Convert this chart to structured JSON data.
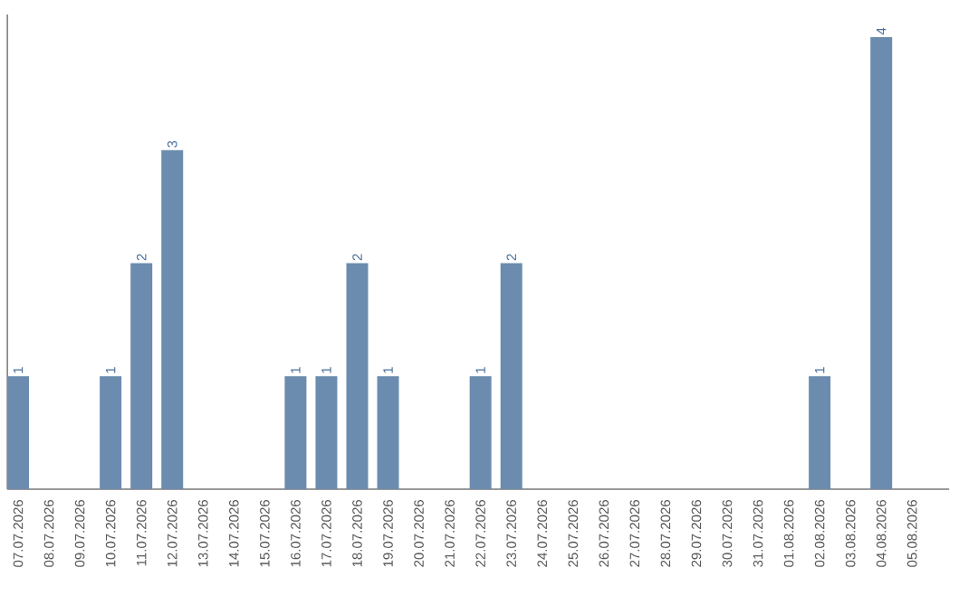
{
  "chart_data": {
    "type": "bar",
    "categories": [
      "07.07.2026",
      "08.07.2026",
      "09.07.2026",
      "10.07.2026",
      "11.07.2026",
      "12.07.2026",
      "13.07.2026",
      "14.07.2026",
      "15.07.2026",
      "16.07.2026",
      "17.07.2026",
      "18.07.2026",
      "19.07.2026",
      "20.07.2026",
      "21.07.2026",
      "22.07.2026",
      "23.07.2026",
      "24.07.2026",
      "25.07.2026",
      "26.07.2026",
      "27.07.2026",
      "28.07.2026",
      "29.07.2026",
      "30.07.2026",
      "31.07.2026",
      "01.08.2026",
      "02.08.2026",
      "03.08.2026",
      "04.08.2026",
      "05.08.2026"
    ],
    "values": [
      1,
      0,
      0,
      1,
      2,
      3,
      0,
      0,
      0,
      1,
      1,
      2,
      1,
      0,
      0,
      1,
      2,
      0,
      0,
      0,
      0,
      0,
      0,
      0,
      0,
      0,
      1,
      0,
      4,
      0
    ],
    "value_labels": [
      "1",
      null,
      null,
      "1",
      "2",
      "3",
      null,
      null,
      null,
      "1",
      "1",
      "2",
      "1",
      null,
      null,
      "1",
      "2",
      null,
      null,
      null,
      null,
      null,
      null,
      null,
      null,
      null,
      "1",
      null,
      "4",
      null
    ],
    "color": "#6b8cae"
  }
}
